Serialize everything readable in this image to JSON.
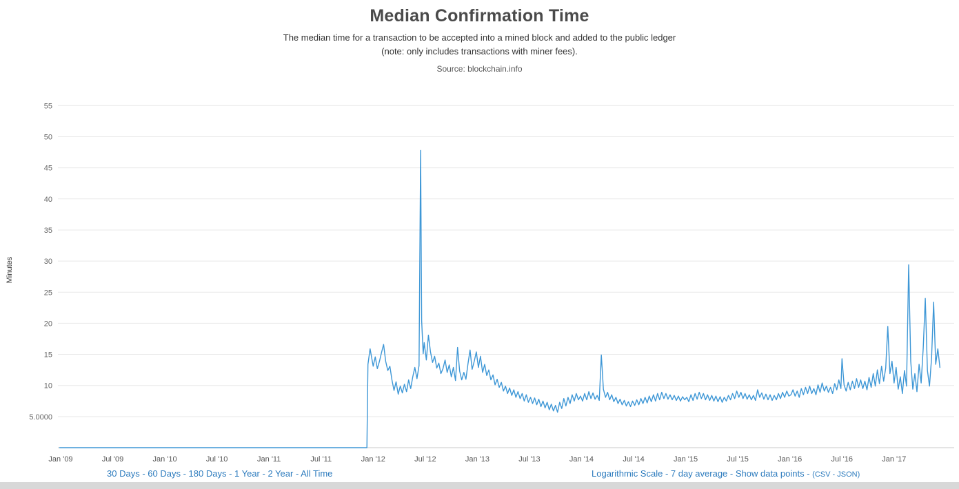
{
  "header": {
    "title": "Median Confirmation Time",
    "subtitle": "The median time for a transaction to be accepted into a mined block and added to the public ledger (note: only includes transactions with miner fees).",
    "source": "Source: blockchain.info"
  },
  "controls": {
    "ranges": [
      "30 Days",
      "60 Days",
      "180 Days",
      "1 Year",
      "2 Year",
      "All Time"
    ],
    "options": [
      "Logarithmic Scale",
      "7 day average",
      "Show data points"
    ],
    "exports": [
      "CSV",
      "JSON"
    ],
    "separator": " - ",
    "paren_open": "(",
    "paren_close": ")"
  },
  "chart_data": {
    "type": "line",
    "title": "Median Confirmation Time",
    "xlabel": "",
    "ylabel": "Minutes",
    "line_color": "#3e97d6",
    "grid_color": "#e9e9e9",
    "axis_color": "#c8c8c8",
    "tick_label_color": "#666666",
    "x_label_color": "#555555",
    "ylim": [
      0,
      57
    ],
    "x_domain": [
      2008.98,
      2017.5
    ],
    "legend_position": "none",
    "grid": "horizontal-only",
    "y_ticks": [
      {
        "v": 5,
        "label": "5.0000"
      },
      {
        "v": 10,
        "label": "10"
      },
      {
        "v": 15,
        "label": "15"
      },
      {
        "v": 20,
        "label": "20"
      },
      {
        "v": 25,
        "label": "25"
      },
      {
        "v": 30,
        "label": "30"
      },
      {
        "v": 35,
        "label": "35"
      },
      {
        "v": 40,
        "label": "40"
      },
      {
        "v": 45,
        "label": "45"
      },
      {
        "v": 50,
        "label": "50"
      },
      {
        "v": 55,
        "label": "55"
      }
    ],
    "x_ticks": [
      {
        "v": 2009.0,
        "label": "Jan '09"
      },
      {
        "v": 2009.5,
        "label": "Jul '09"
      },
      {
        "v": 2010.0,
        "label": "Jan '10"
      },
      {
        "v": 2010.5,
        "label": "Jul '10"
      },
      {
        "v": 2011.0,
        "label": "Jan '11"
      },
      {
        "v": 2011.5,
        "label": "Jul '11"
      },
      {
        "v": 2012.0,
        "label": "Jan '12"
      },
      {
        "v": 2012.5,
        "label": "Jul '12"
      },
      {
        "v": 2013.0,
        "label": "Jan '13"
      },
      {
        "v": 2013.5,
        "label": "Jul '13"
      },
      {
        "v": 2014.0,
        "label": "Jan '14"
      },
      {
        "v": 2014.5,
        "label": "Jul '14"
      },
      {
        "v": 2015.0,
        "label": "Jan '15"
      },
      {
        "v": 2015.5,
        "label": "Jul '15"
      },
      {
        "v": 2016.0,
        "label": "Jan '16"
      },
      {
        "v": 2016.5,
        "label": "Jul '16"
      },
      {
        "v": 2017.0,
        "label": "Jan '17"
      }
    ],
    "points": [
      [
        2008.99,
        0
      ],
      [
        2009.25,
        0
      ],
      [
        2009.5,
        0
      ],
      [
        2009.75,
        0
      ],
      [
        2010,
        0
      ],
      [
        2010.25,
        0
      ],
      [
        2010.5,
        0
      ],
      [
        2010.75,
        0
      ],
      [
        2011,
        0
      ],
      [
        2011.25,
        0
      ],
      [
        2011.5,
        0
      ],
      [
        2011.75,
        0
      ],
      [
        2011.9,
        0
      ],
      [
        2011.94,
        0
      ],
      [
        2011.95,
        13.4
      ],
      [
        2011.97,
        15.9
      ],
      [
        2012.0,
        13.1
      ],
      [
        2012.02,
        14.6
      ],
      [
        2012.04,
        12.7
      ],
      [
        2012.06,
        13.9
      ],
      [
        2012.08,
        15.3
      ],
      [
        2012.1,
        16.6
      ],
      [
        2012.12,
        13.9
      ],
      [
        2012.14,
        12.4
      ],
      [
        2012.16,
        13.1
      ],
      [
        2012.18,
        10.9
      ],
      [
        2012.2,
        9.2
      ],
      [
        2012.22,
        10.6
      ],
      [
        2012.24,
        8.6
      ],
      [
        2012.26,
        9.9
      ],
      [
        2012.28,
        8.8
      ],
      [
        2012.3,
        10.2
      ],
      [
        2012.32,
        9.0
      ],
      [
        2012.34,
        10.9
      ],
      [
        2012.36,
        9.5
      ],
      [
        2012.38,
        11.4
      ],
      [
        2012.4,
        12.9
      ],
      [
        2012.42,
        11.1
      ],
      [
        2012.44,
        13.2
      ],
      [
        2012.455,
        47.8
      ],
      [
        2012.465,
        20.4
      ],
      [
        2012.48,
        15.1
      ],
      [
        2012.49,
        16.9
      ],
      [
        2012.51,
        14.1
      ],
      [
        2012.53,
        18.1
      ],
      [
        2012.55,
        15.4
      ],
      [
        2012.57,
        13.7
      ],
      [
        2012.59,
        14.7
      ],
      [
        2012.61,
        12.8
      ],
      [
        2012.63,
        13.6
      ],
      [
        2012.65,
        11.9
      ],
      [
        2012.67,
        12.7
      ],
      [
        2012.69,
        14.1
      ],
      [
        2012.71,
        12.1
      ],
      [
        2012.73,
        13.3
      ],
      [
        2012.75,
        11.4
      ],
      [
        2012.77,
        12.9
      ],
      [
        2012.79,
        10.8
      ],
      [
        2012.81,
        16.1
      ],
      [
        2012.83,
        12.3
      ],
      [
        2012.85,
        10.9
      ],
      [
        2012.87,
        12.1
      ],
      [
        2012.89,
        11.0
      ],
      [
        2012.91,
        13.5
      ],
      [
        2012.93,
        15.7
      ],
      [
        2012.95,
        12.6
      ],
      [
        2012.97,
        13.9
      ],
      [
        2012.99,
        15.4
      ],
      [
        2013.01,
        12.9
      ],
      [
        2013.03,
        14.7
      ],
      [
        2013.05,
        12.1
      ],
      [
        2013.07,
        13.4
      ],
      [
        2013.09,
        11.6
      ],
      [
        2013.11,
        12.5
      ],
      [
        2013.13,
        10.9
      ],
      [
        2013.15,
        11.7
      ],
      [
        2013.17,
        10.1
      ],
      [
        2013.19,
        11.0
      ],
      [
        2013.21,
        9.7
      ],
      [
        2013.23,
        10.5
      ],
      [
        2013.25,
        9.1
      ],
      [
        2013.27,
        9.9
      ],
      [
        2013.29,
        8.7
      ],
      [
        2013.31,
        9.6
      ],
      [
        2013.33,
        8.4
      ],
      [
        2013.35,
        9.3
      ],
      [
        2013.37,
        8.1
      ],
      [
        2013.39,
        9.0
      ],
      [
        2013.41,
        7.9
      ],
      [
        2013.43,
        8.7
      ],
      [
        2013.45,
        7.5
      ],
      [
        2013.47,
        8.5
      ],
      [
        2013.49,
        7.3
      ],
      [
        2013.51,
        8.1
      ],
      [
        2013.53,
        7.1
      ],
      [
        2013.55,
        8.0
      ],
      [
        2013.57,
        6.9
      ],
      [
        2013.59,
        7.8
      ],
      [
        2013.61,
        6.6
      ],
      [
        2013.63,
        7.5
      ],
      [
        2013.65,
        6.4
      ],
      [
        2013.67,
        7.3
      ],
      [
        2013.69,
        6.1
      ],
      [
        2013.71,
        7.0
      ],
      [
        2013.73,
        5.9
      ],
      [
        2013.75,
        6.8
      ],
      [
        2013.77,
        5.7
      ],
      [
        2013.79,
        7.3
      ],
      [
        2013.81,
        6.3
      ],
      [
        2013.83,
        7.9
      ],
      [
        2013.85,
        6.7
      ],
      [
        2013.87,
        8.1
      ],
      [
        2013.89,
        7.1
      ],
      [
        2013.91,
        8.5
      ],
      [
        2013.93,
        7.5
      ],
      [
        2013.95,
        8.7
      ],
      [
        2013.97,
        7.7
      ],
      [
        2013.99,
        8.3
      ],
      [
        2014.01,
        7.5
      ],
      [
        2014.03,
        8.7
      ],
      [
        2014.05,
        7.7
      ],
      [
        2014.07,
        9.0
      ],
      [
        2014.09,
        7.9
      ],
      [
        2014.11,
        8.8
      ],
      [
        2014.13,
        7.8
      ],
      [
        2014.15,
        8.4
      ],
      [
        2014.17,
        7.6
      ],
      [
        2014.19,
        14.9
      ],
      [
        2014.21,
        9.4
      ],
      [
        2014.23,
        8.1
      ],
      [
        2014.25,
        8.9
      ],
      [
        2014.27,
        7.7
      ],
      [
        2014.29,
        8.5
      ],
      [
        2014.31,
        7.4
      ],
      [
        2014.33,
        8.1
      ],
      [
        2014.35,
        7.1
      ],
      [
        2014.37,
        7.8
      ],
      [
        2014.39,
        6.9
      ],
      [
        2014.41,
        7.6
      ],
      [
        2014.43,
        6.7
      ],
      [
        2014.45,
        7.4
      ],
      [
        2014.47,
        6.6
      ],
      [
        2014.49,
        7.5
      ],
      [
        2014.51,
        6.8
      ],
      [
        2014.53,
        7.7
      ],
      [
        2014.55,
        6.9
      ],
      [
        2014.57,
        7.9
      ],
      [
        2014.59,
        7.1
      ],
      [
        2014.61,
        8.1
      ],
      [
        2014.63,
        7.2
      ],
      [
        2014.65,
        8.3
      ],
      [
        2014.67,
        7.4
      ],
      [
        2014.69,
        8.5
      ],
      [
        2014.71,
        7.5
      ],
      [
        2014.73,
        8.7
      ],
      [
        2014.75,
        7.7
      ],
      [
        2014.77,
        8.9
      ],
      [
        2014.79,
        7.9
      ],
      [
        2014.81,
        8.7
      ],
      [
        2014.83,
        7.8
      ],
      [
        2014.85,
        8.5
      ],
      [
        2014.87,
        7.7
      ],
      [
        2014.89,
        8.4
      ],
      [
        2014.91,
        7.6
      ],
      [
        2014.93,
        8.3
      ],
      [
        2014.95,
        7.5
      ],
      [
        2014.97,
        8.2
      ],
      [
        2014.99,
        7.7
      ],
      [
        2015.01,
        8.1
      ],
      [
        2015.03,
        7.4
      ],
      [
        2015.05,
        8.5
      ],
      [
        2015.07,
        7.6
      ],
      [
        2015.09,
        8.7
      ],
      [
        2015.11,
        7.8
      ],
      [
        2015.13,
        8.9
      ],
      [
        2015.15,
        7.9
      ],
      [
        2015.17,
        8.7
      ],
      [
        2015.19,
        7.7
      ],
      [
        2015.21,
        8.5
      ],
      [
        2015.23,
        7.6
      ],
      [
        2015.25,
        8.4
      ],
      [
        2015.27,
        7.5
      ],
      [
        2015.29,
        8.3
      ],
      [
        2015.31,
        7.4
      ],
      [
        2015.33,
        8.2
      ],
      [
        2015.35,
        7.3
      ],
      [
        2015.37,
        8.1
      ],
      [
        2015.39,
        7.5
      ],
      [
        2015.41,
        8.4
      ],
      [
        2015.43,
        7.7
      ],
      [
        2015.45,
        8.7
      ],
      [
        2015.47,
        7.9
      ],
      [
        2015.49,
        9.1
      ],
      [
        2015.51,
        8.1
      ],
      [
        2015.53,
        8.9
      ],
      [
        2015.55,
        7.9
      ],
      [
        2015.57,
        8.7
      ],
      [
        2015.59,
        7.8
      ],
      [
        2015.61,
        8.5
      ],
      [
        2015.63,
        7.7
      ],
      [
        2015.65,
        8.4
      ],
      [
        2015.67,
        7.6
      ],
      [
        2015.69,
        9.3
      ],
      [
        2015.71,
        8.1
      ],
      [
        2015.73,
        8.8
      ],
      [
        2015.75,
        7.8
      ],
      [
        2015.77,
        8.6
      ],
      [
        2015.79,
        7.7
      ],
      [
        2015.81,
        8.5
      ],
      [
        2015.83,
        7.6
      ],
      [
        2015.85,
        8.4
      ],
      [
        2015.87,
        7.7
      ],
      [
        2015.89,
        8.7
      ],
      [
        2015.91,
        7.9
      ],
      [
        2015.93,
        8.9
      ],
      [
        2015.95,
        8.1
      ],
      [
        2015.97,
        9.1
      ],
      [
        2015.99,
        8.3
      ],
      [
        2016.01,
        8.5
      ],
      [
        2016.03,
        9.3
      ],
      [
        2016.05,
        8.3
      ],
      [
        2016.07,
        9.1
      ],
      [
        2016.09,
        8.1
      ],
      [
        2016.11,
        9.5
      ],
      [
        2016.13,
        8.5
      ],
      [
        2016.15,
        9.7
      ],
      [
        2016.17,
        8.7
      ],
      [
        2016.19,
        9.9
      ],
      [
        2016.21,
        8.7
      ],
      [
        2016.23,
        9.5
      ],
      [
        2016.25,
        8.5
      ],
      [
        2016.27,
        10.1
      ],
      [
        2016.29,
        8.9
      ],
      [
        2016.31,
        10.4
      ],
      [
        2016.33,
        9.1
      ],
      [
        2016.35,
        9.9
      ],
      [
        2016.37,
        8.9
      ],
      [
        2016.39,
        9.7
      ],
      [
        2016.41,
        8.7
      ],
      [
        2016.43,
        10.3
      ],
      [
        2016.45,
        9.3
      ],
      [
        2016.47,
        10.9
      ],
      [
        2016.49,
        9.5
      ],
      [
        2016.5,
        14.3
      ],
      [
        2016.52,
        10.1
      ],
      [
        2016.54,
        9.1
      ],
      [
        2016.56,
        10.5
      ],
      [
        2016.58,
        9.3
      ],
      [
        2016.6,
        10.7
      ],
      [
        2016.62,
        9.5
      ],
      [
        2016.64,
        11.1
      ],
      [
        2016.66,
        9.7
      ],
      [
        2016.68,
        10.9
      ],
      [
        2016.7,
        9.5
      ],
      [
        2016.72,
        10.7
      ],
      [
        2016.74,
        9.3
      ],
      [
        2016.76,
        11.3
      ],
      [
        2016.78,
        9.7
      ],
      [
        2016.8,
        11.9
      ],
      [
        2016.82,
        9.9
      ],
      [
        2016.84,
        12.5
      ],
      [
        2016.86,
        10.3
      ],
      [
        2016.88,
        13.1
      ],
      [
        2016.9,
        10.7
      ],
      [
        2016.92,
        12.8
      ],
      [
        2016.94,
        19.5
      ],
      [
        2016.96,
        11.9
      ],
      [
        2016.98,
        13.9
      ],
      [
        2017.0,
        10.4
      ],
      [
        2017.02,
        12.9
      ],
      [
        2017.04,
        9.4
      ],
      [
        2017.06,
        11.4
      ],
      [
        2017.08,
        8.7
      ],
      [
        2017.1,
        12.4
      ],
      [
        2017.12,
        9.9
      ],
      [
        2017.14,
        29.4
      ],
      [
        2017.16,
        13.9
      ],
      [
        2017.18,
        9.4
      ],
      [
        2017.2,
        11.9
      ],
      [
        2017.22,
        9.0
      ],
      [
        2017.24,
        13.4
      ],
      [
        2017.26,
        10.4
      ],
      [
        2017.28,
        16.0
      ],
      [
        2017.3,
        24.0
      ],
      [
        2017.32,
        12.4
      ],
      [
        2017.34,
        9.9
      ],
      [
        2017.36,
        14.4
      ],
      [
        2017.38,
        23.4
      ],
      [
        2017.4,
        13.4
      ],
      [
        2017.42,
        15.9
      ],
      [
        2017.44,
        12.9
      ]
    ]
  }
}
